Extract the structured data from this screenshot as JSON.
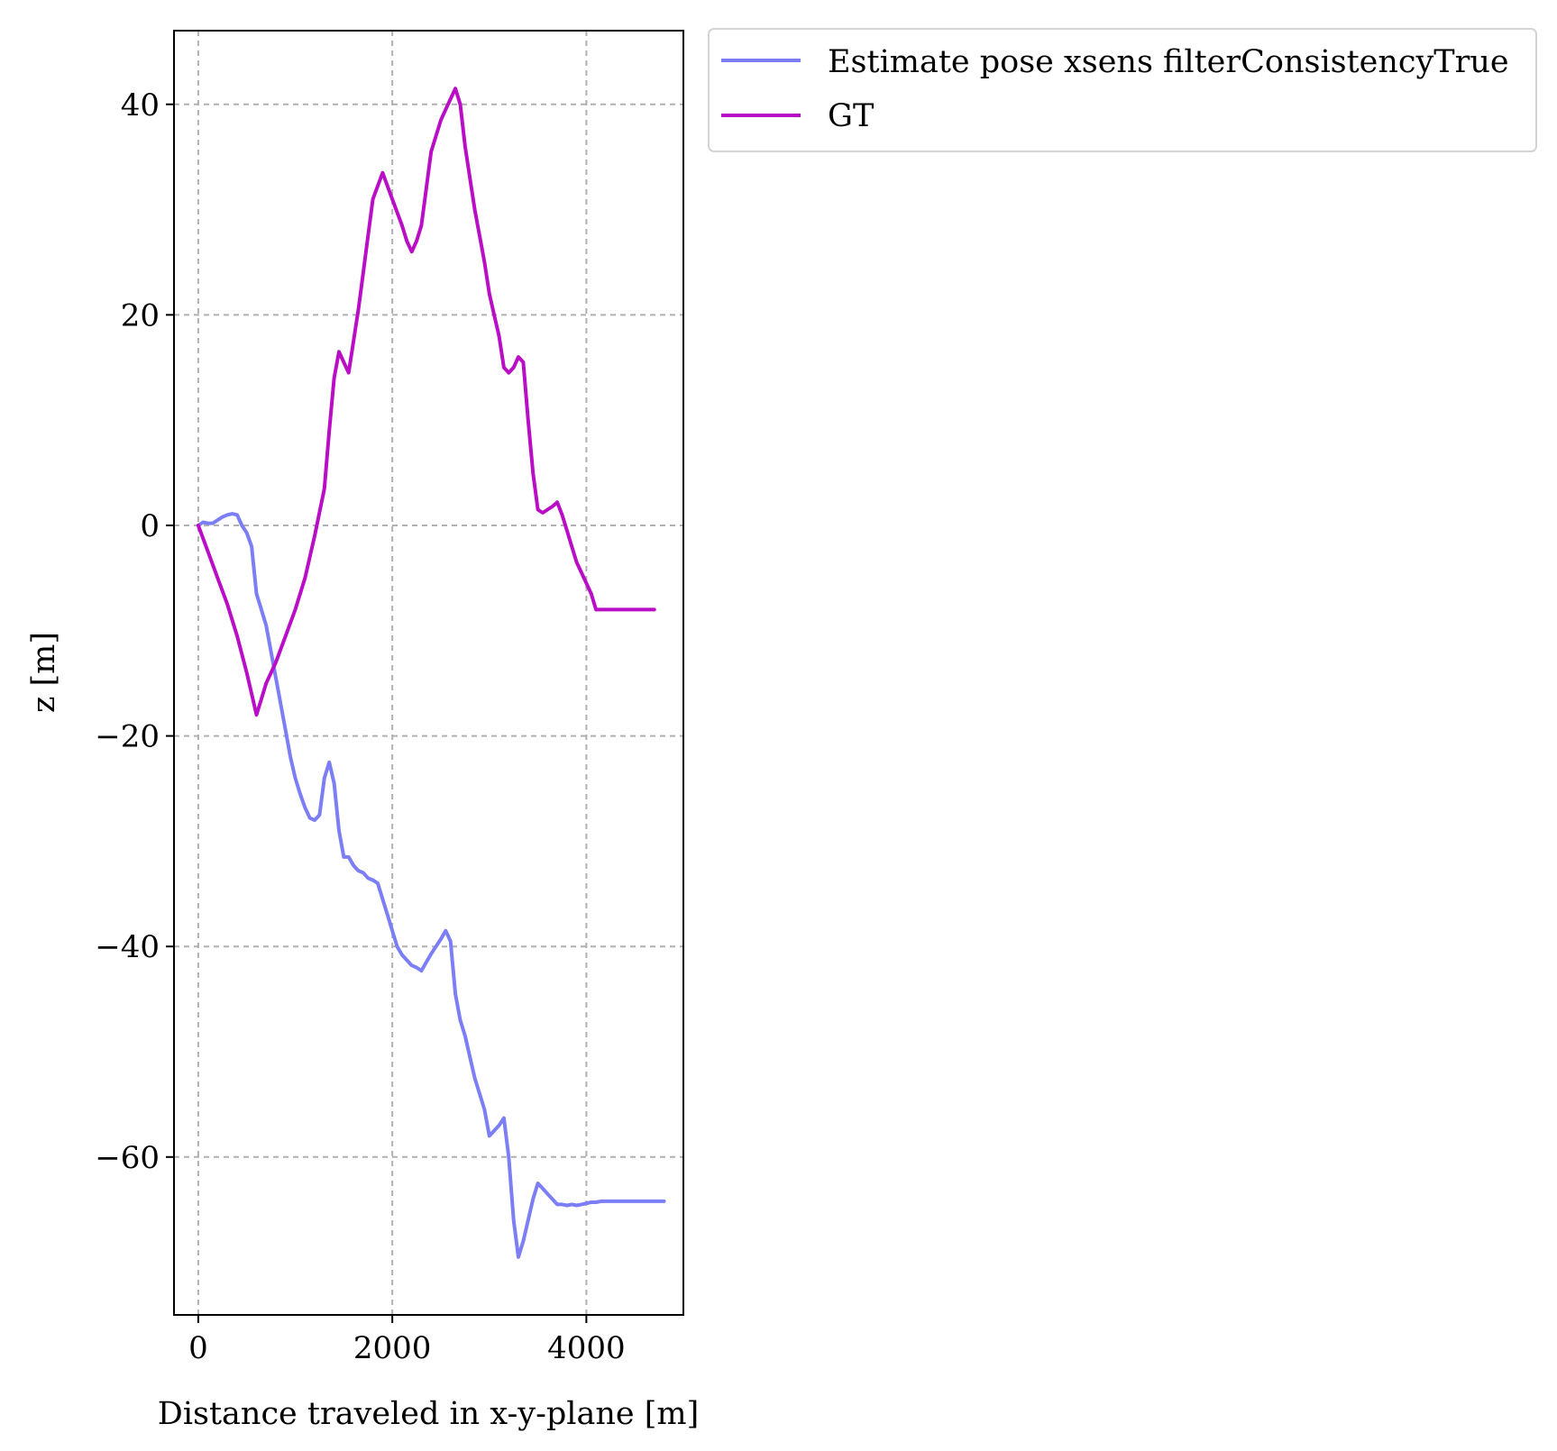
{
  "chart_data": {
    "type": "line",
    "title": "",
    "xlabel": "Distance traveled in x-y-plane [m]",
    "ylabel": "z [m]",
    "xlim": [
      -250,
      5000
    ],
    "ylim": [
      -75,
      47
    ],
    "xticks": [
      0,
      2000,
      4000
    ],
    "xtick_labels": [
      "0",
      "2000",
      "4000"
    ],
    "yticks": [
      40,
      20,
      0,
      -20,
      -40,
      -60
    ],
    "ytick_labels": [
      "40",
      "20",
      "0",
      "−20",
      "−40",
      "−60"
    ],
    "grid": true,
    "legend_placement": "outside-top-right",
    "series": [
      {
        "name": "Estimate pose xsens filterConsistencyTrue",
        "color": "#7b7ef5",
        "x": [
          0,
          50,
          100,
          150,
          200,
          250,
          300,
          350,
          400,
          450,
          500,
          550,
          600,
          650,
          700,
          750,
          800,
          850,
          900,
          950,
          1000,
          1050,
          1100,
          1150,
          1200,
          1250,
          1300,
          1350,
          1400,
          1450,
          1500,
          1550,
          1600,
          1650,
          1700,
          1750,
          1800,
          1850,
          1900,
          1950,
          2000,
          2050,
          2100,
          2150,
          2200,
          2250,
          2300,
          2350,
          2400,
          2450,
          2500,
          2550,
          2600,
          2650,
          2700,
          2750,
          2800,
          2850,
          2900,
          2950,
          3000,
          3050,
          3100,
          3150,
          3200,
          3250,
          3300,
          3350,
          3400,
          3450,
          3500,
          3550,
          3600,
          3650,
          3700,
          3750,
          3800,
          3850,
          3900,
          3950,
          4000,
          4050,
          4100,
          4150,
          4200,
          4250,
          4300,
          4350,
          4400,
          4450,
          4500,
          4550,
          4600,
          4650,
          4700,
          4750,
          4800
        ],
        "y": [
          0,
          0.3,
          0.2,
          0.2,
          0.5,
          0.8,
          1.0,
          1.1,
          1.0,
          0,
          -0.7,
          -2.0,
          -6.5,
          -8.0,
          -9.5,
          -12.0,
          -14.5,
          -17.0,
          -19.5,
          -22.0,
          -24.0,
          -25.5,
          -26.8,
          -27.8,
          -28.0,
          -27.5,
          -24.0,
          -22.5,
          -24.5,
          -29.0,
          -31.5,
          -31.5,
          -32.3,
          -32.8,
          -33.0,
          -33.5,
          -33.7,
          -34.0,
          -35.5,
          -37.0,
          -38.5,
          -40.0,
          -40.8,
          -41.3,
          -41.8,
          -42.0,
          -42.3,
          -41.5,
          -40.7,
          -40.0,
          -39.3,
          -38.5,
          -39.5,
          -44.5,
          -47.0,
          -48.5,
          -50.5,
          -52.5,
          -54.0,
          -55.5,
          -58.0,
          -57.5,
          -57.0,
          -56.3,
          -60.0,
          -66.0,
          -69.5,
          -68.0,
          -66.0,
          -64.0,
          -62.5,
          -63.0,
          -63.5,
          -64.0,
          -64.5,
          -64.5,
          -64.6,
          -64.5,
          -64.6,
          -64.5,
          -64.4,
          -64.3,
          -64.3,
          -64.2,
          -64.2,
          -64.2,
          -64.2,
          -64.2,
          -64.2,
          -64.2,
          -64.2,
          -64.2,
          -64.2,
          -64.2,
          -64.2,
          -64.2,
          -64.2
        ]
      },
      {
        "name": "GT",
        "color": "#b90ec6",
        "x": [
          0,
          100,
          200,
          300,
          400,
          500,
          600,
          650,
          700,
          800,
          900,
          1000,
          1100,
          1200,
          1300,
          1350,
          1400,
          1450,
          1500,
          1550,
          1600,
          1650,
          1700,
          1750,
          1800,
          1900,
          2000,
          2100,
          2150,
          2200,
          2250,
          2300,
          2350,
          2400,
          2450,
          2500,
          2550,
          2600,
          2650,
          2700,
          2750,
          2800,
          2850,
          2900,
          2950,
          3000,
          3050,
          3100,
          3150,
          3200,
          3250,
          3300,
          3350,
          3400,
          3450,
          3500,
          3550,
          3600,
          3650,
          3700,
          3750,
          3800,
          3850,
          3900,
          3950,
          4000,
          4050,
          4100,
          4150,
          4200,
          4250,
          4300,
          4350,
          4400,
          4450,
          4500,
          4550,
          4600,
          4650,
          4700
        ],
        "y": [
          0,
          -2.5,
          -5.0,
          -7.5,
          -10.5,
          -14.0,
          -18.0,
          -16.5,
          -15.0,
          -13.0,
          -10.5,
          -8.0,
          -5.0,
          -1.0,
          3.5,
          9.0,
          14.0,
          16.5,
          15.5,
          14.5,
          17.5,
          20.5,
          24.0,
          27.5,
          31.0,
          33.5,
          31.0,
          28.5,
          27.0,
          26.0,
          27.0,
          28.5,
          32.0,
          35.5,
          37.0,
          38.5,
          39.5,
          40.5,
          41.5,
          40.0,
          36.0,
          33.0,
          30.0,
          27.5,
          25.0,
          22.0,
          20.0,
          18.0,
          15.0,
          14.5,
          15.0,
          16.0,
          15.5,
          10.0,
          5.0,
          1.5,
          1.2,
          1.5,
          1.8,
          2.2,
          1.0,
          -0.5,
          -2.0,
          -3.5,
          -4.5,
          -5.5,
          -6.5,
          -8.0,
          -8.0,
          -8.0,
          -8.0,
          -8.0,
          -8.0,
          -8.0,
          -8.0,
          -8.0,
          -8.0,
          -8.0,
          -8.0,
          -8.0
        ]
      }
    ]
  }
}
